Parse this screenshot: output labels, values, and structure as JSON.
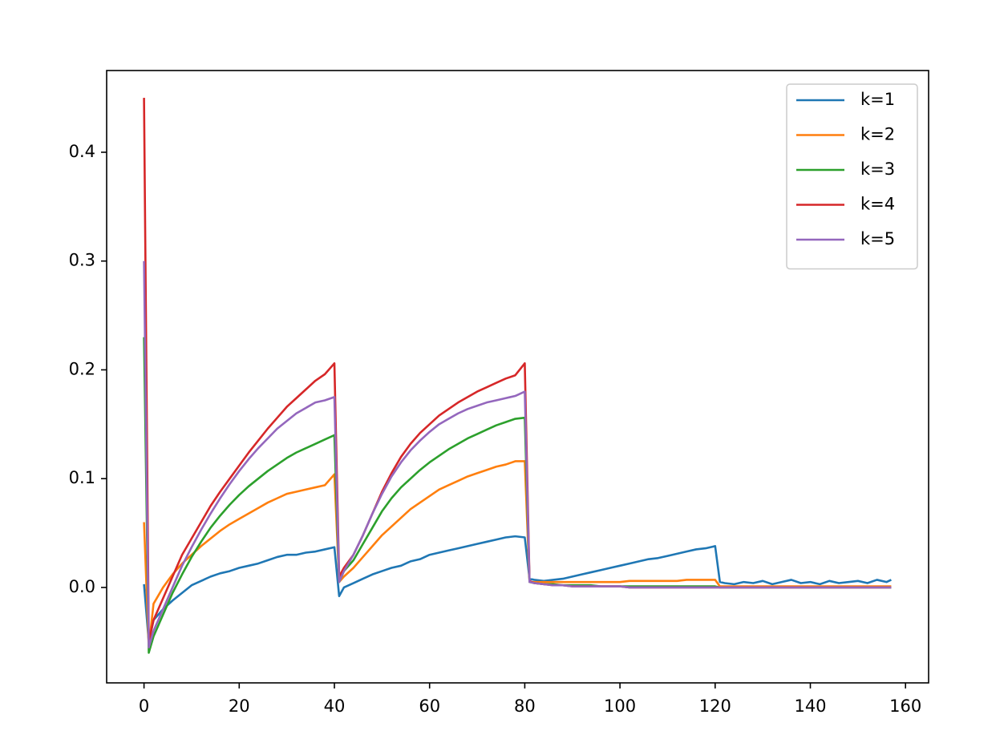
{
  "chart_data": {
    "type": "line",
    "x": [
      0,
      1,
      2,
      4,
      6,
      8,
      10,
      12,
      14,
      16,
      18,
      20,
      22,
      24,
      26,
      28,
      30,
      32,
      34,
      36,
      38,
      40,
      41,
      42,
      44,
      46,
      48,
      50,
      52,
      54,
      56,
      58,
      60,
      62,
      64,
      66,
      68,
      70,
      72,
      74,
      76,
      78,
      80,
      81,
      82,
      84,
      86,
      88,
      90,
      92,
      94,
      96,
      98,
      100,
      102,
      104,
      106,
      108,
      110,
      112,
      114,
      116,
      118,
      120,
      121,
      122,
      124,
      126,
      128,
      130,
      132,
      134,
      136,
      138,
      140,
      142,
      144,
      146,
      148,
      150,
      152,
      154,
      156,
      157
    ],
    "series": [
      {
        "name": "k=1",
        "color": "#1f77b4",
        "values": [
          0.003,
          -0.05,
          -0.03,
          -0.02,
          -0.012,
          -0.005,
          0.002,
          0.006,
          0.01,
          0.013,
          0.015,
          0.018,
          0.02,
          0.022,
          0.025,
          0.028,
          0.03,
          0.03,
          0.032,
          0.033,
          0.035,
          0.037,
          -0.008,
          0.0,
          0.004,
          0.008,
          0.012,
          0.015,
          0.018,
          0.02,
          0.024,
          0.026,
          0.03,
          0.032,
          0.034,
          0.036,
          0.038,
          0.04,
          0.042,
          0.044,
          0.046,
          0.047,
          0.046,
          0.008,
          0.007,
          0.006,
          0.007,
          0.008,
          0.01,
          0.012,
          0.014,
          0.016,
          0.018,
          0.02,
          0.022,
          0.024,
          0.026,
          0.027,
          0.029,
          0.031,
          0.033,
          0.035,
          0.036,
          0.038,
          0.005,
          0.004,
          0.003,
          0.005,
          0.004,
          0.006,
          0.003,
          0.005,
          0.007,
          0.004,
          0.005,
          0.003,
          0.006,
          0.004,
          0.005,
          0.006,
          0.004,
          0.007,
          0.005,
          0.007
        ]
      },
      {
        "name": "k=2",
        "color": "#ff7f0e",
        "values": [
          0.06,
          -0.055,
          -0.015,
          0.0,
          0.012,
          0.022,
          0.03,
          0.038,
          0.045,
          0.052,
          0.058,
          0.063,
          0.068,
          0.073,
          0.078,
          0.082,
          0.086,
          0.088,
          0.09,
          0.092,
          0.094,
          0.104,
          0.005,
          0.01,
          0.018,
          0.028,
          0.038,
          0.048,
          0.056,
          0.064,
          0.072,
          0.078,
          0.084,
          0.09,
          0.094,
          0.098,
          0.102,
          0.105,
          0.108,
          0.111,
          0.113,
          0.116,
          0.116,
          0.005,
          0.005,
          0.005,
          0.005,
          0.005,
          0.005,
          0.005,
          0.005,
          0.005,
          0.005,
          0.005,
          0.006,
          0.006,
          0.006,
          0.006,
          0.006,
          0.006,
          0.007,
          0.007,
          0.007,
          0.007,
          0.001,
          0.001,
          0.001,
          0.001,
          0.001,
          0.001,
          0.001,
          0.001,
          0.001,
          0.001,
          0.001,
          0.001,
          0.001,
          0.001,
          0.001,
          0.001,
          0.001,
          0.001,
          0.001,
          0.001
        ]
      },
      {
        "name": "k=3",
        "color": "#2ca02c",
        "values": [
          0.23,
          -0.06,
          -0.045,
          -0.025,
          -0.005,
          0.012,
          0.028,
          0.042,
          0.055,
          0.066,
          0.076,
          0.085,
          0.093,
          0.1,
          0.107,
          0.113,
          0.119,
          0.124,
          0.128,
          0.132,
          0.136,
          0.14,
          0.005,
          0.015,
          0.025,
          0.04,
          0.055,
          0.07,
          0.082,
          0.092,
          0.1,
          0.108,
          0.115,
          0.121,
          0.127,
          0.132,
          0.137,
          0.141,
          0.145,
          0.149,
          0.152,
          0.155,
          0.156,
          0.005,
          0.004,
          0.003,
          0.003,
          0.002,
          0.002,
          0.002,
          0.002,
          0.001,
          0.001,
          0.001,
          0.001,
          0.001,
          0.001,
          0.001,
          0.001,
          0.001,
          0.001,
          0.001,
          0.001,
          0.001,
          0.0,
          0,
          0,
          0,
          0,
          0,
          0,
          0,
          0,
          0,
          0,
          0,
          0,
          0,
          0,
          0,
          0,
          0,
          0,
          0.0
        ]
      },
      {
        "name": "k=4",
        "color": "#d62728",
        "values": [
          0.45,
          -0.05,
          -0.03,
          -0.01,
          0.01,
          0.03,
          0.045,
          0.06,
          0.075,
          0.088,
          0.1,
          0.112,
          0.124,
          0.135,
          0.146,
          0.156,
          0.166,
          0.174,
          0.182,
          0.19,
          0.196,
          0.206,
          0.01,
          0.018,
          0.03,
          0.048,
          0.068,
          0.088,
          0.105,
          0.12,
          0.132,
          0.142,
          0.15,
          0.158,
          0.164,
          0.17,
          0.175,
          0.18,
          0.184,
          0.188,
          0.192,
          0.195,
          0.206,
          0.006,
          0.004,
          0.003,
          0.002,
          0.002,
          0.001,
          0.001,
          0.001,
          0.001,
          0.001,
          0.001,
          0,
          0,
          0,
          0,
          0,
          0,
          0,
          0,
          0,
          0,
          0,
          0,
          0,
          0,
          0,
          0,
          0,
          0,
          0,
          0,
          0,
          0,
          0,
          0,
          0,
          0,
          0,
          0,
          0,
          0
        ]
      },
      {
        "name": "k=5",
        "color": "#9467bd",
        "values": [
          0.3,
          -0.055,
          -0.04,
          -0.02,
          0.0,
          0.02,
          0.037,
          0.053,
          0.068,
          0.082,
          0.095,
          0.107,
          0.118,
          0.128,
          0.137,
          0.146,
          0.153,
          0.16,
          0.165,
          0.17,
          0.172,
          0.175,
          0.005,
          0.015,
          0.03,
          0.048,
          0.068,
          0.086,
          0.102,
          0.115,
          0.126,
          0.135,
          0.143,
          0.15,
          0.155,
          0.16,
          0.164,
          0.167,
          0.17,
          0.172,
          0.174,
          0.176,
          0.18,
          0.005,
          0.004,
          0.003,
          0.002,
          0.002,
          0.001,
          0.001,
          0.001,
          0.001,
          0.001,
          0.001,
          0,
          0,
          0,
          0,
          0,
          0,
          0,
          0,
          0,
          0,
          0,
          0,
          0,
          0,
          0,
          0,
          0,
          0,
          0,
          0,
          0,
          0,
          0,
          0,
          0,
          0,
          0,
          0,
          0,
          0
        ]
      }
    ],
    "xlim": [
      -7.85,
      164.85
    ],
    "xticks": [
      0,
      20,
      40,
      60,
      80,
      100,
      120,
      140,
      160
    ],
    "ylim": [
      -0.0877,
      0.4751
    ],
    "yticks": [
      {
        "value": 0,
        "label": "0.0"
      },
      0.1,
      0.2,
      0.3,
      0.4
    ],
    "grid": false,
    "legend": "upper right"
  }
}
